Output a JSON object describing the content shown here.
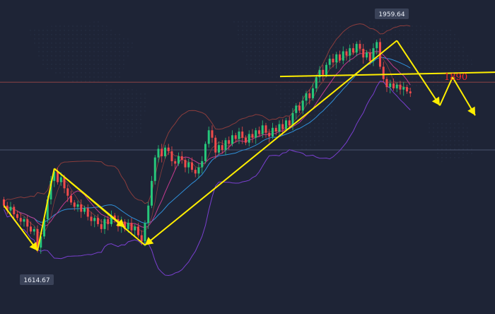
{
  "chart_data": {
    "type": "candlestick",
    "title": "",
    "xlabel": "",
    "ylabel": "",
    "ylim": [
      1590,
      1975
    ],
    "annotations": {
      "high_label": "1959.64",
      "low_label": "1614.67",
      "level_label": "1890",
      "level_value": 1890
    },
    "overlays": [
      "moving-average-1",
      "moving-average-2",
      "moving-average-3",
      "bollinger-bands"
    ],
    "colors": {
      "background": "#1e2436",
      "bull": "#26c67a",
      "bear": "#ef4b4b",
      "drawing": "#ffee00",
      "bollinger": "#8a3c3c",
      "ma_fast": "#c13a8e",
      "ma_mid": "#2f8fd8",
      "ma_slow": "#7a3fd0",
      "level_line": "#9a4848"
    },
    "candles": [
      {
        "o": 1700,
        "c": 1690
      },
      {
        "o": 1690,
        "c": 1682
      },
      {
        "o": 1682,
        "c": 1688
      },
      {
        "o": 1688,
        "c": 1676
      },
      {
        "o": 1676,
        "c": 1670
      },
      {
        "o": 1670,
        "c": 1664
      },
      {
        "o": 1664,
        "c": 1668
      },
      {
        "o": 1668,
        "c": 1656
      },
      {
        "o": 1656,
        "c": 1648
      },
      {
        "o": 1648,
        "c": 1652
      },
      {
        "o": 1652,
        "c": 1622
      },
      {
        "o": 1622,
        "c": 1640
      },
      {
        "o": 1640,
        "c": 1668
      },
      {
        "o": 1668,
        "c": 1700
      },
      {
        "o": 1700,
        "c": 1730
      },
      {
        "o": 1730,
        "c": 1745
      },
      {
        "o": 1745,
        "c": 1728
      },
      {
        "o": 1728,
        "c": 1736
      },
      {
        "o": 1736,
        "c": 1718
      },
      {
        "o": 1718,
        "c": 1706
      },
      {
        "o": 1706,
        "c": 1695
      },
      {
        "o": 1695,
        "c": 1688
      },
      {
        "o": 1688,
        "c": 1692
      },
      {
        "o": 1692,
        "c": 1680
      },
      {
        "o": 1680,
        "c": 1686
      },
      {
        "o": 1686,
        "c": 1672
      },
      {
        "o": 1672,
        "c": 1665
      },
      {
        "o": 1665,
        "c": 1670
      },
      {
        "o": 1670,
        "c": 1660
      },
      {
        "o": 1660,
        "c": 1652
      },
      {
        "o": 1652,
        "c": 1668
      },
      {
        "o": 1668,
        "c": 1660
      },
      {
        "o": 1660,
        "c": 1674
      },
      {
        "o": 1674,
        "c": 1668
      },
      {
        "o": 1668,
        "c": 1656
      },
      {
        "o": 1656,
        "c": 1664
      },
      {
        "o": 1664,
        "c": 1652
      },
      {
        "o": 1652,
        "c": 1662
      },
      {
        "o": 1662,
        "c": 1650
      },
      {
        "o": 1650,
        "c": 1656
      },
      {
        "o": 1656,
        "c": 1642
      },
      {
        "o": 1642,
        "c": 1632
      },
      {
        "o": 1632,
        "c": 1662
      },
      {
        "o": 1662,
        "c": 1690
      },
      {
        "o": 1690,
        "c": 1730
      },
      {
        "o": 1730,
        "c": 1768
      },
      {
        "o": 1768,
        "c": 1782
      },
      {
        "o": 1782,
        "c": 1770
      },
      {
        "o": 1770,
        "c": 1784
      },
      {
        "o": 1784,
        "c": 1778
      },
      {
        "o": 1778,
        "c": 1762
      },
      {
        "o": 1762,
        "c": 1758
      },
      {
        "o": 1758,
        "c": 1770
      },
      {
        "o": 1770,
        "c": 1764
      },
      {
        "o": 1764,
        "c": 1752
      },
      {
        "o": 1752,
        "c": 1760
      },
      {
        "o": 1760,
        "c": 1748
      },
      {
        "o": 1748,
        "c": 1742
      },
      {
        "o": 1742,
        "c": 1752
      },
      {
        "o": 1752,
        "c": 1762
      },
      {
        "o": 1762,
        "c": 1790
      },
      {
        "o": 1790,
        "c": 1812
      },
      {
        "o": 1812,
        "c": 1800
      },
      {
        "o": 1800,
        "c": 1776
      },
      {
        "o": 1776,
        "c": 1788
      },
      {
        "o": 1788,
        "c": 1780
      },
      {
        "o": 1780,
        "c": 1796
      },
      {
        "o": 1796,
        "c": 1790
      },
      {
        "o": 1790,
        "c": 1804
      },
      {
        "o": 1804,
        "c": 1798
      },
      {
        "o": 1798,
        "c": 1810
      },
      {
        "o": 1810,
        "c": 1800
      },
      {
        "o": 1800,
        "c": 1792
      },
      {
        "o": 1792,
        "c": 1806
      },
      {
        "o": 1806,
        "c": 1800
      },
      {
        "o": 1800,
        "c": 1812
      },
      {
        "o": 1812,
        "c": 1806
      },
      {
        "o": 1806,
        "c": 1820
      },
      {
        "o": 1820,
        "c": 1808
      },
      {
        "o": 1808,
        "c": 1802
      },
      {
        "o": 1802,
        "c": 1816
      },
      {
        "o": 1816,
        "c": 1810
      },
      {
        "o": 1810,
        "c": 1822
      },
      {
        "o": 1822,
        "c": 1814
      },
      {
        "o": 1814,
        "c": 1828
      },
      {
        "o": 1828,
        "c": 1820
      },
      {
        "o": 1820,
        "c": 1840
      },
      {
        "o": 1840,
        "c": 1852
      },
      {
        "o": 1852,
        "c": 1844
      },
      {
        "o": 1844,
        "c": 1860
      },
      {
        "o": 1860,
        "c": 1872
      },
      {
        "o": 1872,
        "c": 1864
      },
      {
        "o": 1864,
        "c": 1880
      },
      {
        "o": 1880,
        "c": 1898
      },
      {
        "o": 1898,
        "c": 1910
      },
      {
        "o": 1910,
        "c": 1902
      },
      {
        "o": 1902,
        "c": 1918
      },
      {
        "o": 1918,
        "c": 1928
      },
      {
        "o": 1928,
        "c": 1922
      },
      {
        "o": 1922,
        "c": 1935
      },
      {
        "o": 1935,
        "c": 1925
      },
      {
        "o": 1925,
        "c": 1940
      },
      {
        "o": 1940,
        "c": 1933
      },
      {
        "o": 1933,
        "c": 1945
      },
      {
        "o": 1945,
        "c": 1938
      },
      {
        "o": 1938,
        "c": 1952
      },
      {
        "o": 1952,
        "c": 1944
      },
      {
        "o": 1944,
        "c": 1930
      },
      {
        "o": 1930,
        "c": 1938
      },
      {
        "o": 1938,
        "c": 1924
      },
      {
        "o": 1924,
        "c": 1945
      },
      {
        "o": 1945,
        "c": 1955
      },
      {
        "o": 1955,
        "c": 1915
      },
      {
        "o": 1915,
        "c": 1895
      },
      {
        "o": 1895,
        "c": 1882
      },
      {
        "o": 1882,
        "c": 1888
      },
      {
        "o": 1888,
        "c": 1880
      },
      {
        "o": 1880,
        "c": 1886
      },
      {
        "o": 1886,
        "c": 1878
      },
      {
        "o": 1878,
        "c": 1882
      },
      {
        "o": 1882,
        "c": 1875
      },
      {
        "o": 1875,
        "c": 1872
      }
    ]
  }
}
